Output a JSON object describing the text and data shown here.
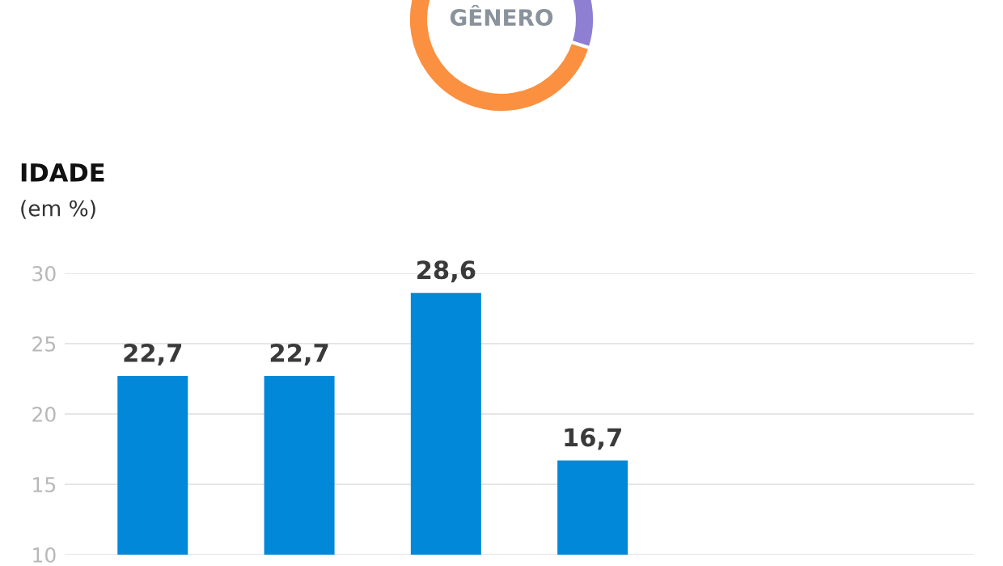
{
  "chart_data": [
    {
      "type": "donut",
      "title": "GÊNERO",
      "categories": [
        null,
        null
      ],
      "values": [
        30,
        70
      ],
      "colors": [
        "#8f7fd2",
        "#fb9040"
      ]
    },
    {
      "type": "bar",
      "title": "IDADE",
      "subtitle": "(em %)",
      "categories": [
        null,
        null,
        null,
        null,
        null,
        null
      ],
      "values": [
        22.7,
        22.7,
        28.6,
        16.7,
        null,
        null
      ],
      "value_labels": [
        "22,7",
        "22,7",
        "28,6",
        "16,7",
        null,
        null
      ],
      "color": "#0288d8",
      "ylim": [
        10,
        30
      ],
      "yticks": [
        10,
        15,
        20,
        25,
        30
      ],
      "grid": "y",
      "tick_labels": "y"
    }
  ]
}
